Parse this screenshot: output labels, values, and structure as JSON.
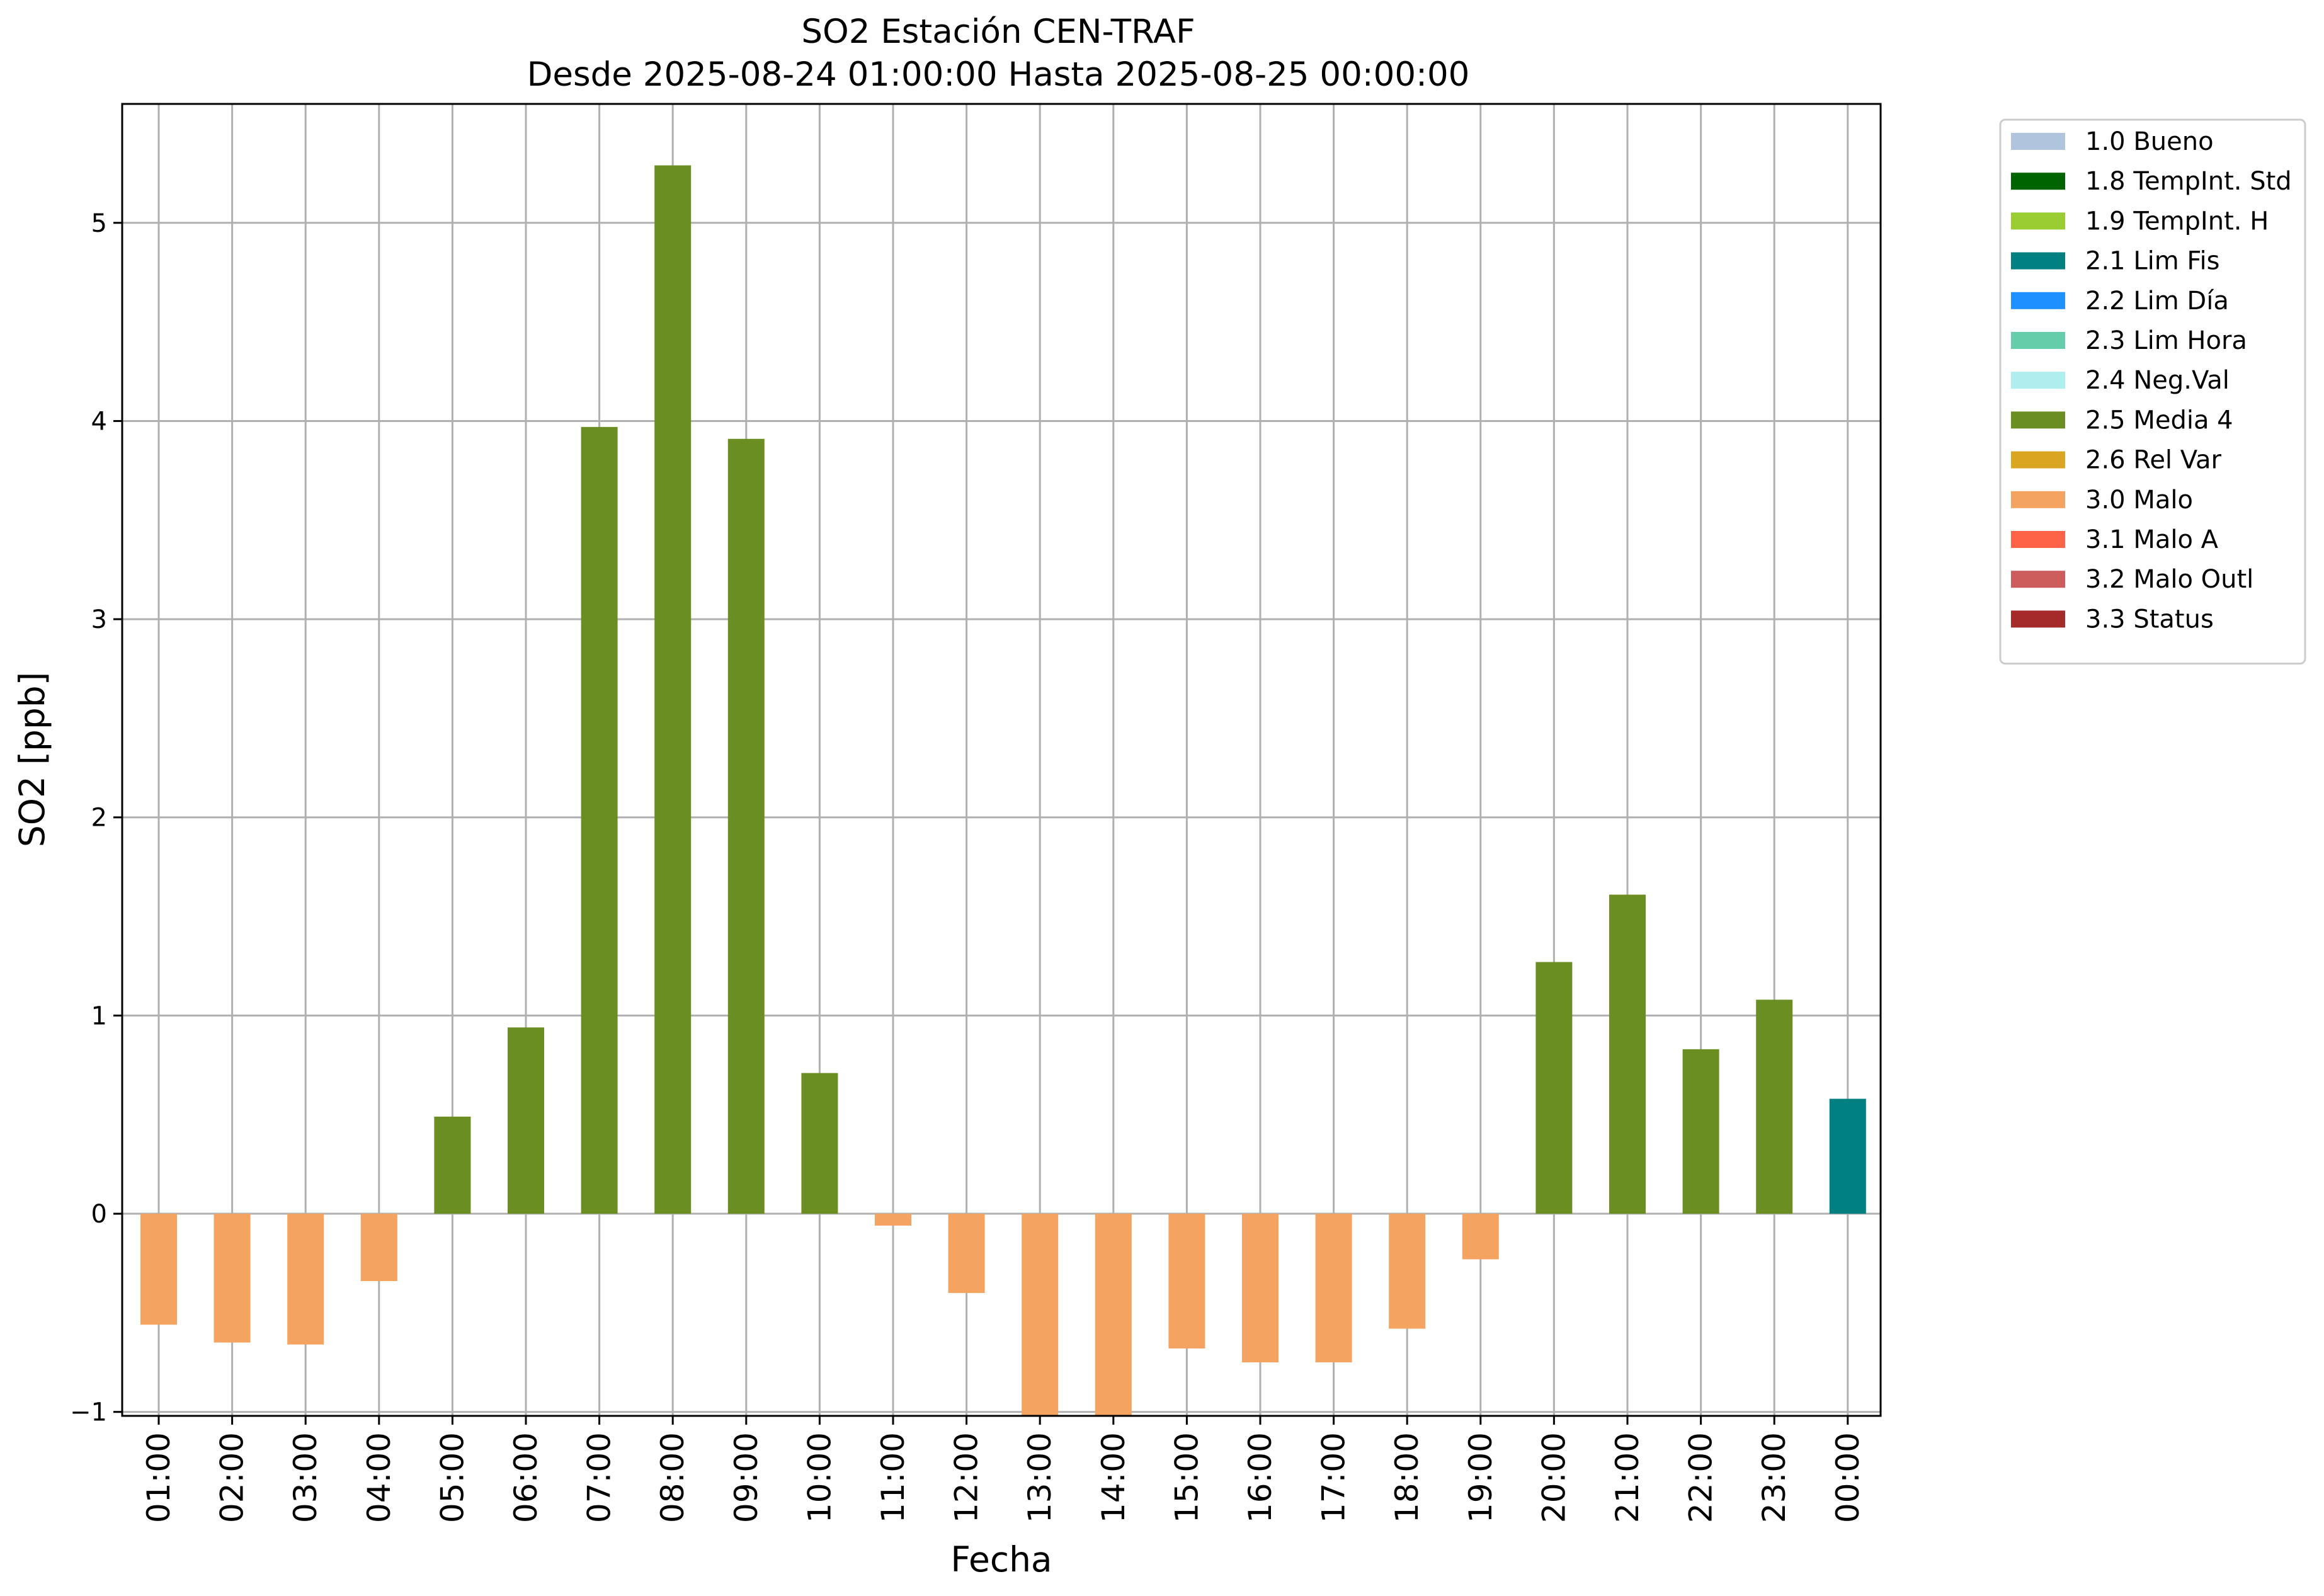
{
  "chart_data": {
    "type": "bar",
    "title": "SO2 Estación CEN-TRAF",
    "subtitle": "Desde 2025-08-24 01:00:00 Hasta 2025-08-25 00:00:00",
    "xlabel": "Fecha",
    "ylabel": "SO2 [ppb]",
    "ylim": [
      -1.02,
      5.6
    ],
    "yticks": [
      -1,
      0,
      1,
      2,
      3,
      4,
      5
    ],
    "grid": true,
    "legend_position": "outside-top-right",
    "categories": [
      "01:00",
      "02:00",
      "03:00",
      "04:00",
      "05:00",
      "06:00",
      "07:00",
      "08:00",
      "09:00",
      "10:00",
      "11:00",
      "12:00",
      "13:00",
      "14:00",
      "15:00",
      "16:00",
      "17:00",
      "18:00",
      "19:00",
      "20:00",
      "21:00",
      "22:00",
      "23:00",
      "00:00"
    ],
    "values": [
      -0.56,
      -0.65,
      -0.66,
      -0.34,
      0.49,
      0.94,
      3.97,
      5.29,
      3.91,
      0.71,
      -0.06,
      -0.4,
      -1.02,
      -1.02,
      -0.68,
      -0.75,
      -0.75,
      -0.58,
      -0.23,
      1.27,
      1.61,
      0.83,
      1.08,
      0.58
    ],
    "flags": [
      "3.0 Malo",
      "3.0 Malo",
      "3.0 Malo",
      "3.0 Malo",
      "2.5 Media 4",
      "2.5 Media 4",
      "2.5 Media 4",
      "2.5 Media 4",
      "2.5 Media 4",
      "2.5 Media 4",
      "3.0 Malo",
      "3.0 Malo",
      "3.0 Malo",
      "3.0 Malo",
      "3.0 Malo",
      "3.0 Malo",
      "3.0 Malo",
      "3.0 Malo",
      "3.0 Malo",
      "2.5 Media 4",
      "2.5 Media 4",
      "2.5 Media 4",
      "2.5 Media 4",
      "2.1 Lim Fis"
    ],
    "legend": [
      {
        "label": "1.0 Bueno",
        "color": "#b0c4de"
      },
      {
        "label": "1.8 TempInt. Std",
        "color": "#006400"
      },
      {
        "label": "1.9 TempInt. H",
        "color": "#9acd32"
      },
      {
        "label": "2.1 Lim Fis",
        "color": "#008080"
      },
      {
        "label": "2.2 Lim Día",
        "color": "#1e90ff"
      },
      {
        "label": "2.3 Lim Hora",
        "color": "#66cdaa"
      },
      {
        "label": "2.4 Neg.Val",
        "color": "#afeeee"
      },
      {
        "label": "2.5 Media 4",
        "color": "#6b8e23"
      },
      {
        "label": "2.6 Rel Var",
        "color": "#daa520"
      },
      {
        "label": "3.0 Malo",
        "color": "#f4a460"
      },
      {
        "label": "3.1 Malo A",
        "color": "#ff6347"
      },
      {
        "label": "3.2 Malo Outl",
        "color": "#cd5c5c"
      },
      {
        "label": "3.3 Status",
        "color": "#a52a2a"
      }
    ]
  }
}
